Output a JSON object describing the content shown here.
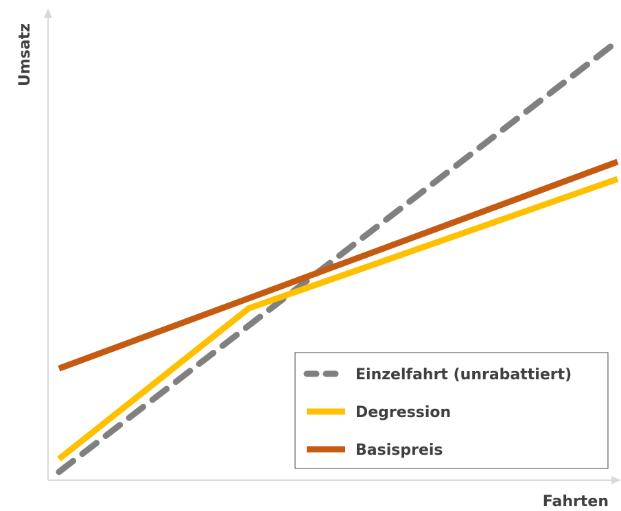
{
  "chart_data": {
    "type": "line",
    "title": "",
    "xlabel": "Fahrten",
    "ylabel": "Umsatz",
    "xlim": [
      0,
      100
    ],
    "ylim": [
      0,
      100
    ],
    "grid": false,
    "legend_position": "bottom-right",
    "series": [
      {
        "name": "Einzelfahrt (unrabattiert)",
        "color": "#808080",
        "style": "dashed",
        "x": [
          0,
          100
        ],
        "y": [
          0,
          100
        ]
      },
      {
        "name": "Degression",
        "color": "#ffc000",
        "style": "solid",
        "x": [
          0,
          34,
          100
        ],
        "y": [
          3,
          38,
          68
        ]
      },
      {
        "name": "Basispreis",
        "color": "#c55a11",
        "style": "solid",
        "x": [
          0,
          100
        ],
        "y": [
          24,
          72
        ]
      }
    ]
  }
}
